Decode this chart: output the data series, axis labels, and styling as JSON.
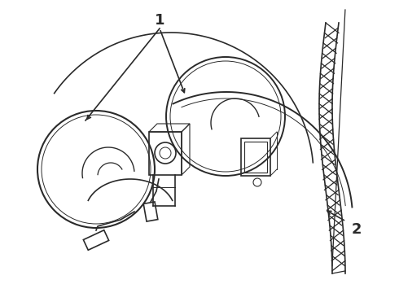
{
  "background_color": "#ffffff",
  "line_color": "#2a2a2a",
  "lw": 1.2,
  "label1": "1",
  "label2": "2",
  "figsize": [
    4.9,
    3.6
  ],
  "dpi": 100
}
